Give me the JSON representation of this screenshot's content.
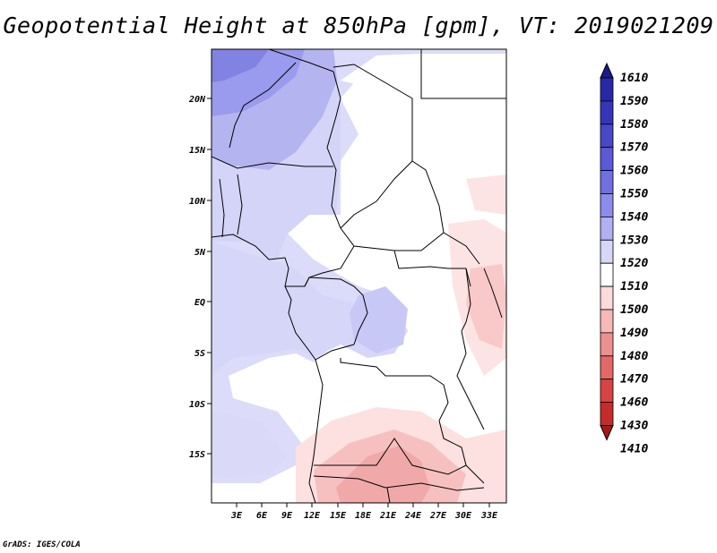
{
  "title": "Geopotential Height at 850hPa [gpm], VT: 2019021209",
  "credit": "GrADS: IGES/COLA",
  "map": {
    "lon_labels": [
      "3E",
      "6E",
      "9E",
      "12E",
      "15E",
      "18E",
      "21E",
      "24E",
      "27E",
      "30E",
      "33E"
    ],
    "lat_labels": [
      "20N",
      "15N",
      "10N",
      "5N",
      "EQ",
      "5S",
      "10S",
      "15S"
    ]
  },
  "colorbar": {
    "levels": [
      "1610",
      "1590",
      "1580",
      "1570",
      "1560",
      "1550",
      "1540",
      "1530",
      "1520",
      "1510",
      "1500",
      "1490",
      "1480",
      "1470",
      "1460",
      "1430",
      "1410"
    ],
    "colors": [
      "#1a1a8c",
      "#2828a5",
      "#3535b8",
      "#4747c8",
      "#5a5ad6",
      "#7070e2",
      "#8c8cec",
      "#b0b0f2",
      "#d6d6f8",
      "#ffffff",
      "#fcdada",
      "#f7b8b8",
      "#ee9090",
      "#e46868",
      "#d84343",
      "#c62b2b",
      "#a81818"
    ]
  }
}
